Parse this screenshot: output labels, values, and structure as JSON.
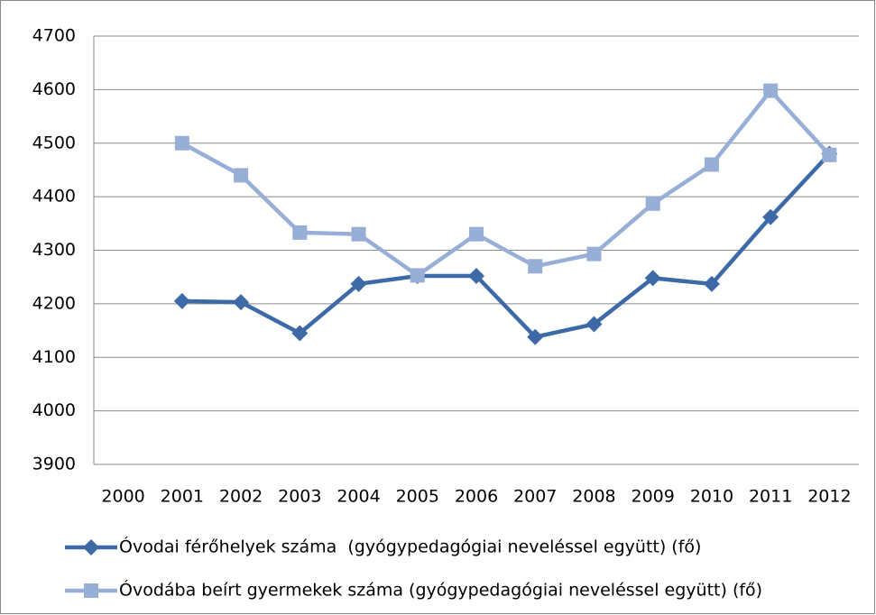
{
  "chart_data": {
    "type": "line",
    "categories": [
      "2000",
      "2001",
      "2002",
      "2003",
      "2004",
      "2005",
      "2006",
      "2007",
      "2008",
      "2009",
      "2010",
      "2011",
      "2012"
    ],
    "series": [
      {
        "name": "Óvodai férőhelyek száma  (gyógypedagógiai neveléssel együtt) (fő)",
        "color": "#3d6aa6",
        "marker": "diamond",
        "values": [
          null,
          4205,
          4203,
          4145,
          4237,
          4252,
          4252,
          4138,
          4162,
          4248,
          4237,
          4362,
          4480
        ]
      },
      {
        "name": "Óvodába beírt gyermekek száma (gyógypedagógiai neveléssel együtt) (fő)",
        "color": "#97afd7",
        "marker": "square",
        "values": [
          null,
          4500,
          4440,
          4333,
          4330,
          4253,
          4330,
          4270,
          4293,
          4387,
          4460,
          4598,
          4478
        ]
      }
    ],
    "ylim": [
      3900,
      4700
    ],
    "yticks": [
      3900,
      4000,
      4100,
      4200,
      4300,
      4400,
      4500,
      4600,
      4700
    ],
    "grid": true,
    "legend": "bottom"
  }
}
